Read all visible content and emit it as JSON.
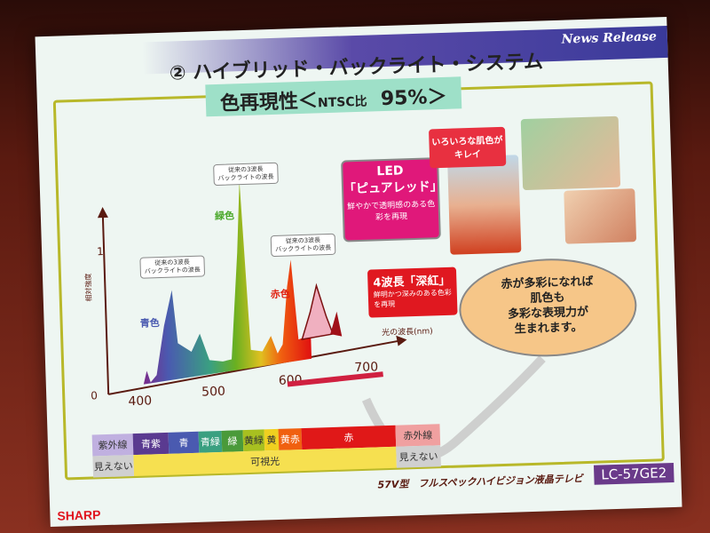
{
  "header": {
    "news_release": "News Release",
    "title": "② ハイブリッド・バックライト・システム",
    "subtitle_main": "色再現性＜",
    "subtitle_small": "NTSC比",
    "subtitle_value": "95%＞"
  },
  "spectrum": {
    "y_ticks": [
      "0",
      "1"
    ],
    "y_label": "相対強度",
    "x_ticks": [
      "400",
      "500",
      "600",
      "700"
    ],
    "x_label": "光の波長(nm)",
    "peak_labels": {
      "blue": "青色",
      "green": "緑色",
      "red": "赤色"
    },
    "callout_text": "従来の3波長\nバックライトの波長",
    "colors": {
      "blue": "#4a5ab0",
      "green": "#4aa82a",
      "red": "#e02010",
      "deep_red": "#a01018"
    }
  },
  "led_box": {
    "title": "LED",
    "name": "「ピュアレッド」",
    "desc": "鮮やかで透明感のある色彩を再現",
    "color": "#e0187a"
  },
  "deep_box": {
    "title": "4波長「深紅」",
    "desc": "鮮明かつ深みのある色彩を再現",
    "color": "#e01820"
  },
  "skin_bubble": "いろいろな肌色がキレイ",
  "oval_text": [
    "赤が多彩になれば",
    "肌色も",
    "多彩な表現力が",
    "生まれます。"
  ],
  "bands": [
    {
      "label": "紫外線",
      "color": "#c0b0e0"
    },
    {
      "label": "青紫",
      "color": "#5a3a90"
    },
    {
      "label": "青",
      "color": "#4a5ab0"
    },
    {
      "label": "青緑",
      "color": "#3aa080"
    },
    {
      "label": "緑",
      "color": "#4a9a3a"
    },
    {
      "label": "黄緑",
      "color": "#a8c020"
    },
    {
      "label": "黄",
      "color": "#f0d020"
    },
    {
      "label": "黄赤",
      "color": "#f06010"
    },
    {
      "label": "赤",
      "color": "#e01818"
    },
    {
      "label": "赤外線",
      "color": "#f0a0a0"
    }
  ],
  "band_row2": {
    "invisible_left": "見えない",
    "visible": "可視光",
    "invisible_right": "見えない"
  },
  "footer": {
    "product": "57V型　フルスペックハイビジョン液晶テレビ",
    "model": "LC-57GE2",
    "brand": "SHARP"
  }
}
